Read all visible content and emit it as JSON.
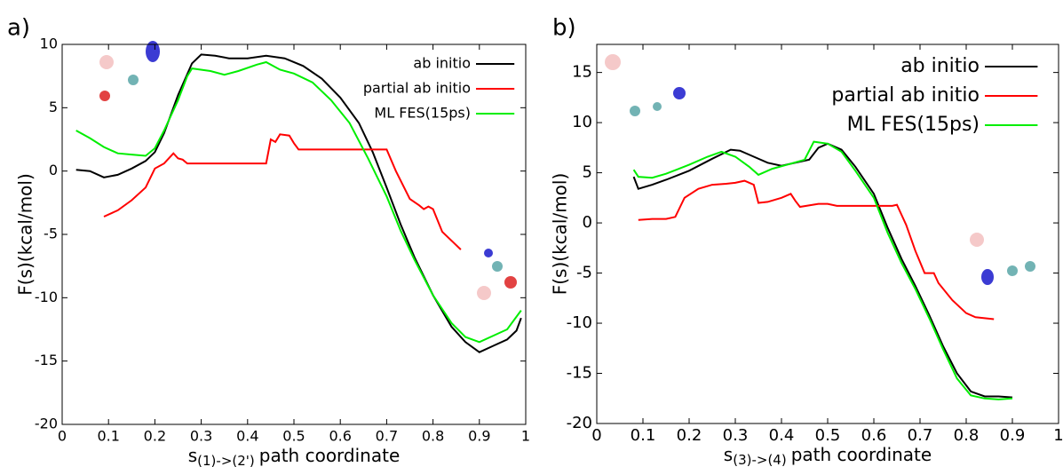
{
  "chart_data": [
    {
      "type": "line",
      "panel_label": "a)",
      "ylabel": "F(s)(kcal/mol)",
      "xlabel_symbol": "s",
      "xlabel_subscript": "(1)->(2')",
      "xlabel": "path coordinate",
      "xlim": [
        0,
        1
      ],
      "ylim": [
        -20,
        10
      ],
      "xticks": [
        0,
        0.1,
        0.2,
        0.3,
        0.4,
        0.5,
        0.6,
        0.7,
        0.8,
        0.9,
        1
      ],
      "yticks": [
        -20,
        -15,
        -10,
        -5,
        0,
        5,
        10
      ],
      "legend": "upper right",
      "series": [
        {
          "name": "ab initio",
          "color": "#000000",
          "x": [
            0.03,
            0.06,
            0.09,
            0.12,
            0.15,
            0.18,
            0.2,
            0.22,
            0.25,
            0.28,
            0.3,
            0.33,
            0.36,
            0.4,
            0.44,
            0.48,
            0.52,
            0.56,
            0.6,
            0.64,
            0.67,
            0.7,
            0.73,
            0.76,
            0.8,
            0.84,
            0.87,
            0.9,
            0.93,
            0.96,
            0.98,
            0.99
          ],
          "values": [
            0.1,
            0,
            -0.5,
            -0.3,
            0.2,
            0.8,
            1.5,
            3,
            6,
            8.5,
            9.2,
            9.1,
            8.9,
            8.9,
            9.1,
            8.9,
            8.3,
            7.3,
            5.8,
            3.8,
            1.5,
            -1.3,
            -4.2,
            -6.8,
            -9.8,
            -12.3,
            -13.5,
            -14.3,
            -13.8,
            -13.3,
            -12.6,
            -11.6
          ]
        },
        {
          "name": "partial ab initio",
          "color": "#ff0000",
          "x": [
            0.09,
            0.12,
            0.15,
            0.18,
            0.2,
            0.22,
            0.24,
            0.25,
            0.26,
            0.27,
            0.44,
            0.45,
            0.46,
            0.47,
            0.49,
            0.5,
            0.51,
            0.7,
            0.72,
            0.75,
            0.77,
            0.78,
            0.79,
            0.8,
            0.82,
            0.86
          ],
          "values": [
            -3.6,
            -3.1,
            -2.3,
            -1.3,
            0.2,
            0.6,
            1.4,
            1.0,
            0.9,
            0.6,
            0.6,
            2.5,
            2.3,
            2.9,
            2.8,
            2.2,
            1.7,
            1.7,
            0.0,
            -2.2,
            -2.7,
            -3.0,
            -2.8,
            -3.0,
            -4.8,
            -6.2
          ]
        },
        {
          "name": "ML FES(15ps)",
          "color": "#00ee00",
          "x": [
            0.03,
            0.06,
            0.09,
            0.12,
            0.15,
            0.18,
            0.2,
            0.22,
            0.25,
            0.27,
            0.28,
            0.32,
            0.35,
            0.38,
            0.42,
            0.44,
            0.47,
            0.5,
            0.54,
            0.58,
            0.62,
            0.66,
            0.7,
            0.73,
            0.76,
            0.8,
            0.84,
            0.87,
            0.9,
            0.93,
            0.96,
            0.99
          ],
          "values": [
            3.2,
            2.6,
            1.9,
            1.4,
            1.3,
            1.2,
            1.8,
            3.2,
            5.6,
            7.5,
            8.1,
            7.9,
            7.6,
            7.9,
            8.4,
            8.6,
            8.0,
            7.7,
            7.0,
            5.6,
            3.8,
            1.0,
            -2.0,
            -4.7,
            -7.0,
            -9.8,
            -12.0,
            -13.1,
            -13.5,
            -13.0,
            -12.5,
            -11.0
          ]
        }
      ]
    },
    {
      "type": "line",
      "panel_label": "b)",
      "ylabel": "F(s)(kcal/mol)",
      "xlabel_symbol": "s",
      "xlabel_subscript": "(3)->(4)",
      "xlabel": "path coordinate",
      "xlim": [
        0,
        1
      ],
      "ylim": [
        -20,
        17.8
      ],
      "xticks": [
        0,
        0.1,
        0.2,
        0.3,
        0.4,
        0.5,
        0.6,
        0.7,
        0.8,
        0.9,
        1
      ],
      "yticks": [
        -20,
        -15,
        -10,
        -5,
        0,
        5,
        10,
        15
      ],
      "legend": "upper right",
      "series": [
        {
          "name": "ab initio",
          "color": "#000000",
          "x": [
            0.08,
            0.09,
            0.12,
            0.15,
            0.2,
            0.25,
            0.29,
            0.31,
            0.34,
            0.37,
            0.4,
            0.43,
            0.46,
            0.48,
            0.5,
            0.53,
            0.56,
            0.6,
            0.63,
            0.66,
            0.69,
            0.72,
            0.75,
            0.78,
            0.81,
            0.84,
            0.87,
            0.9
          ],
          "values": [
            4.6,
            3.4,
            3.8,
            4.3,
            5.2,
            6.4,
            7.3,
            7.2,
            6.6,
            6.0,
            5.7,
            6.0,
            6.3,
            7.5,
            7.9,
            7.3,
            5.6,
            2.9,
            -0.5,
            -3.6,
            -6.3,
            -9.2,
            -12.3,
            -15.0,
            -16.8,
            -17.3,
            -17.3,
            -17.4
          ]
        },
        {
          "name": "partial ab initio",
          "color": "#ff0000",
          "x": [
            0.09,
            0.12,
            0.15,
            0.17,
            0.19,
            0.22,
            0.25,
            0.28,
            0.3,
            0.32,
            0.34,
            0.35,
            0.37,
            0.4,
            0.42,
            0.43,
            0.44,
            0.48,
            0.5,
            0.52,
            0.64,
            0.65,
            0.67,
            0.69,
            0.7,
            0.71,
            0.73,
            0.74,
            0.77,
            0.8,
            0.82,
            0.86
          ],
          "values": [
            0.3,
            0.4,
            0.4,
            0.6,
            2.5,
            3.4,
            3.8,
            3.9,
            4.0,
            4.2,
            3.8,
            2.0,
            2.1,
            2.5,
            2.9,
            2.2,
            1.6,
            1.9,
            1.9,
            1.7,
            1.7,
            1.8,
            -0.2,
            -2.8,
            -3.9,
            -5.0,
            -5.0,
            -6.0,
            -7.7,
            -9.0,
            -9.4,
            -9.6
          ]
        },
        {
          "name": "ML FES(15ps)",
          "color": "#00ee00",
          "x": [
            0.08,
            0.09,
            0.12,
            0.15,
            0.2,
            0.24,
            0.27,
            0.3,
            0.33,
            0.35,
            0.38,
            0.42,
            0.45,
            0.47,
            0.5,
            0.53,
            0.56,
            0.6,
            0.63,
            0.66,
            0.69,
            0.72,
            0.75,
            0.78,
            0.81,
            0.84,
            0.87,
            0.9
          ],
          "values": [
            5.3,
            4.6,
            4.5,
            4.9,
            5.8,
            6.6,
            7.1,
            6.6,
            5.6,
            4.8,
            5.4,
            5.9,
            6.3,
            8.1,
            7.9,
            7.1,
            5.2,
            2.5,
            -1.0,
            -4.0,
            -6.6,
            -9.5,
            -12.6,
            -15.5,
            -17.2,
            -17.5,
            -17.6,
            -17.5
          ]
        }
      ]
    }
  ]
}
